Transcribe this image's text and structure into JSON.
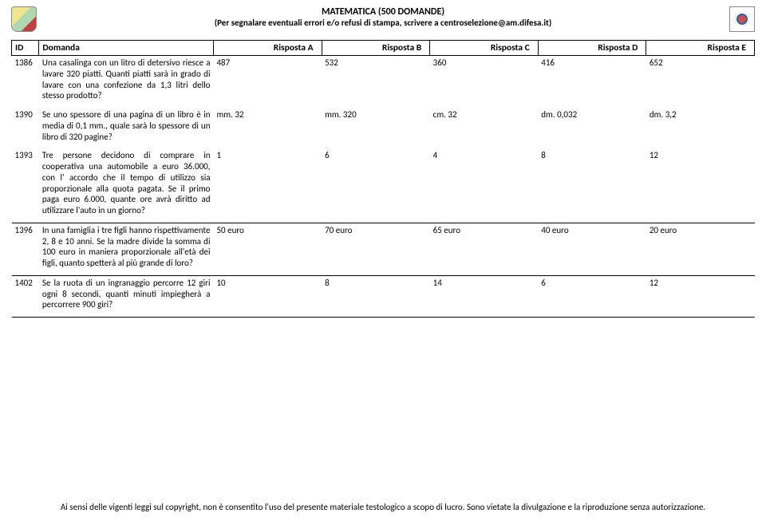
{
  "header": {
    "title_line1": "MATEMATICA (500 DOMANDE)",
    "title_line2": "(Per segnalare eventuali errori e/o refusi di stampa, scrivere a centroselezione@am.difesa.it)"
  },
  "columns": {
    "id": "ID",
    "question": "Domanda",
    "a": "Risposta A",
    "b": "Risposta B",
    "c": "Risposta C",
    "d": "Risposta D",
    "e": "Risposta E"
  },
  "rows": [
    {
      "id": "1386",
      "q": "Una casalinga con un litro di detersivo riesce a lavare 320 piatti. Quanti piatti sarà in grado di lavare con una confezione da 1,3 litri dello stesso prodotto?",
      "a": "487",
      "b": "532",
      "c": "360",
      "d": "416",
      "e": "652",
      "group": 1
    },
    {
      "id": "1390",
      "q": "Se uno spessore di una pagina di un libro è in media di 0,1 mm., quale sarà lo spessore di un libro di 320 pagine?",
      "a": "mm. 32",
      "b": "mm. 320",
      "c": "cm. 32",
      "d": "dm. 0,032",
      "e": "dm. 3,2",
      "group": 1
    },
    {
      "id": "1393",
      "q": "Tre persone decidono di comprare in cooperativa una automobile a euro 36.000, con l' accordo che il tempo di utilizzo sia proporzionale alla quota pagata. Se il primo paga euro 6.000, quante ore avrà diritto ad utilizzare l'auto in un giorno?",
      "a": "1",
      "b": "6",
      "c": "4",
      "d": "8",
      "e": "12",
      "group": 1
    },
    {
      "id": "1396",
      "q": "In una famiglia i tre figli hanno rispettivamente 2, 8 e 10 anni. Se la madre divide la somma di 100 euro in maniera proporzionale all'età dei figli, quanto spetterà al più grande di loro?",
      "a": "50 euro",
      "b": "70 euro",
      "c": "65 euro",
      "d": "40 euro",
      "e": "20 euro",
      "group": 2
    },
    {
      "id": "1402",
      "q": "Se la ruota di un ingranaggio percorre 12 giri ogni 8 secondi, quanti minuti impiegherà a percorrere 900 giri?",
      "a": "10",
      "b": "8",
      "c": "14",
      "d": "6",
      "e": "12",
      "group": 3
    }
  ],
  "footer": "Ai sensi delle vigenti leggi sul copyright, non è consentito l'uso del presente materiale testologico a scopo di lucro. Sono vietate la divulgazione e la riproduzione senza autorizzazione."
}
